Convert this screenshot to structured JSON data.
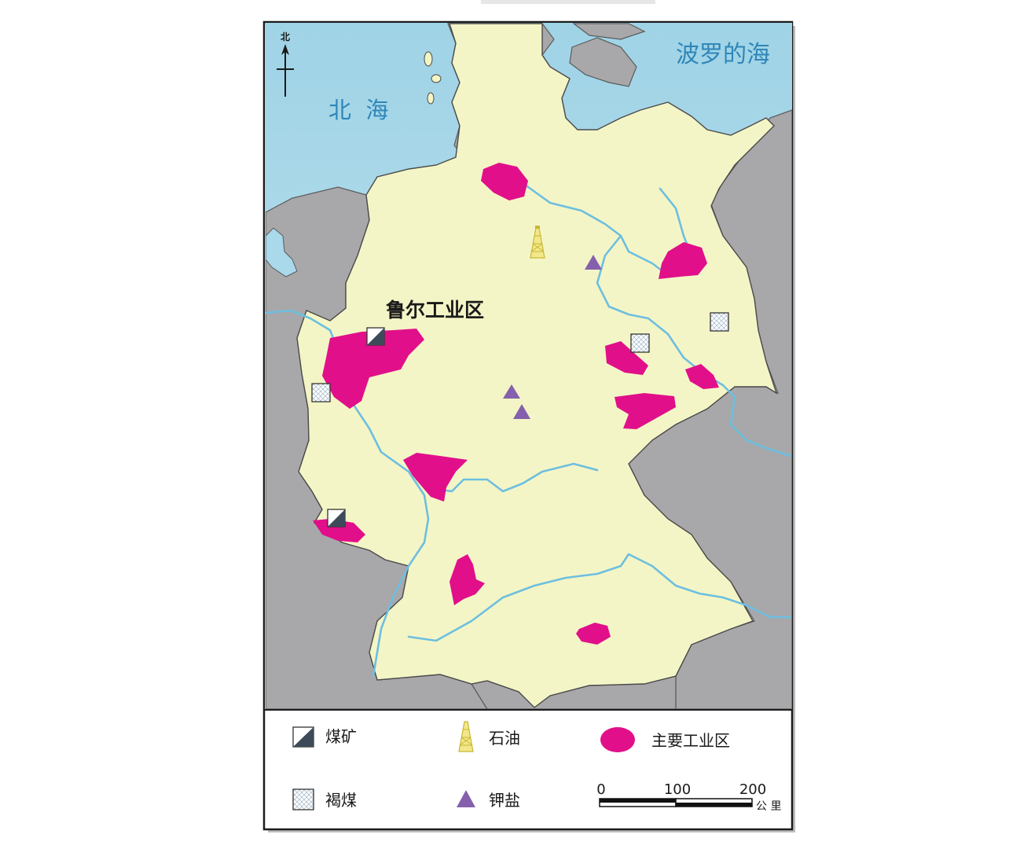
{
  "map": {
    "compass_label": "北",
    "sea_labels": {
      "north_sea": "北  海",
      "baltic_sea": "波罗的海"
    },
    "region_label": "鲁尔工业区"
  },
  "legend": {
    "coal_mine": "煤矿",
    "oil": "石油",
    "industrial_zone": "主要工业区",
    "lignite": "褐煤",
    "potash": "钾盐"
  },
  "scale": {
    "tick_0": "0",
    "tick_100": "100",
    "tick_200": "200",
    "unit": "公 里"
  },
  "colors": {
    "sea": "#a9d9ea",
    "land_germany": "#f4f5c6",
    "land_neighbors": "#a7a7a9",
    "industrial_zone": "#e10f8a",
    "river": "#6dbfe0",
    "potash": "#8560ad"
  }
}
